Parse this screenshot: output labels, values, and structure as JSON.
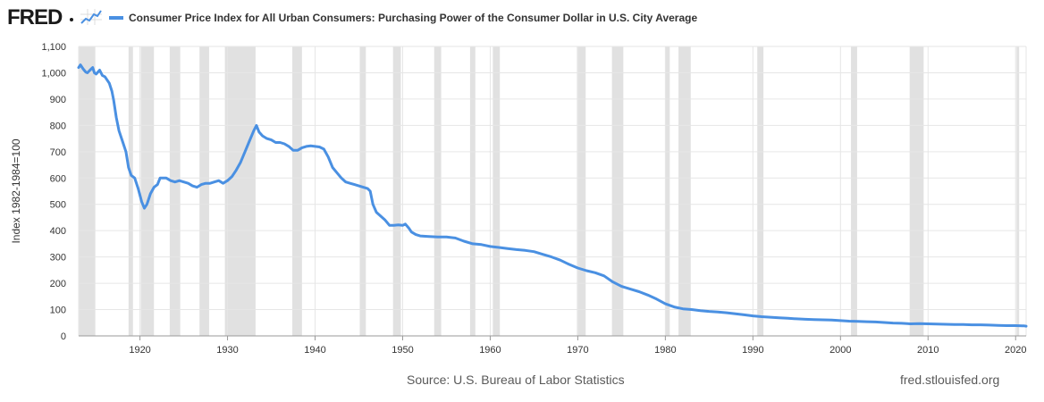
{
  "brand": {
    "logo_text": "FRED"
  },
  "footer": {
    "source": "Source: U.S. Bureau of Labor Statistics",
    "url": "fred.stlouisfed.org"
  },
  "chart_data": {
    "type": "line",
    "title": "Consumer Price Index for All Urban Consumers: Purchasing Power of the Consumer Dollar in U.S. City Average",
    "xlabel": "",
    "ylabel": "Index 1982-1984=100",
    "xlim": [
      1913.0,
      2021.2
    ],
    "ylim": [
      0,
      1100
    ],
    "x_ticks": [
      1920,
      1930,
      1940,
      1950,
      1960,
      1970,
      1980,
      1990,
      2000,
      2010,
      2020
    ],
    "y_ticks": [
      0,
      100,
      200,
      300,
      400,
      500,
      600,
      700,
      800,
      900,
      1000,
      1100
    ],
    "y_tick_labels": [
      "0",
      "100",
      "200",
      "300",
      "400",
      "500",
      "600",
      "700",
      "800",
      "900",
      "1,000",
      "1,100"
    ],
    "grid": "vertical and horizontal",
    "line_color": "#4a90e2",
    "recession_color": "#e1e1e1",
    "recessions": [
      [
        1913.0,
        1914.9
      ],
      [
        1918.7,
        1919.2
      ],
      [
        1920.1,
        1921.6
      ],
      [
        1923.4,
        1924.6
      ],
      [
        1926.8,
        1927.9
      ],
      [
        1929.7,
        1933.2
      ],
      [
        1937.4,
        1938.5
      ],
      [
        1945.1,
        1945.8
      ],
      [
        1948.9,
        1949.8
      ],
      [
        1953.6,
        1954.4
      ],
      [
        1957.7,
        1958.3
      ],
      [
        1960.3,
        1961.1
      ],
      [
        1969.9,
        1970.9
      ],
      [
        1973.9,
        1975.2
      ],
      [
        1980.0,
        1980.5
      ],
      [
        1981.5,
        1982.9
      ],
      [
        1990.5,
        1991.2
      ],
      [
        2001.2,
        2001.9
      ],
      [
        2007.9,
        2009.5
      ],
      [
        2020.1,
        2020.4
      ]
    ],
    "series": [
      {
        "points": [
          [
            1913.0,
            1020
          ],
          [
            1913.2,
            1030
          ],
          [
            1913.5,
            1015
          ],
          [
            1913.8,
            1003
          ],
          [
            1914.0,
            1000
          ],
          [
            1914.3,
            1010
          ],
          [
            1914.6,
            1020
          ],
          [
            1914.8,
            1000
          ],
          [
            1915.0,
            995
          ],
          [
            1915.4,
            1010
          ],
          [
            1915.7,
            990
          ],
          [
            1916.0,
            985
          ],
          [
            1916.5,
            960
          ],
          [
            1916.8,
            930
          ],
          [
            1917.0,
            895
          ],
          [
            1917.3,
            830
          ],
          [
            1917.6,
            780
          ],
          [
            1918.0,
            740
          ],
          [
            1918.4,
            700
          ],
          [
            1918.7,
            640
          ],
          [
            1919.0,
            610
          ],
          [
            1919.4,
            600
          ],
          [
            1919.8,
            560
          ],
          [
            1920.2,
            510
          ],
          [
            1920.5,
            485
          ],
          [
            1920.8,
            500
          ],
          [
            1921.2,
            540
          ],
          [
            1921.6,
            565
          ],
          [
            1922.0,
            575
          ],
          [
            1922.3,
            600
          ],
          [
            1922.7,
            600
          ],
          [
            1923.0,
            600
          ],
          [
            1923.5,
            590
          ],
          [
            1924.0,
            585
          ],
          [
            1924.5,
            590
          ],
          [
            1925.0,
            585
          ],
          [
            1925.5,
            580
          ],
          [
            1926.0,
            570
          ],
          [
            1926.5,
            565
          ],
          [
            1927.0,
            575
          ],
          [
            1927.5,
            580
          ],
          [
            1928.0,
            580
          ],
          [
            1928.5,
            585
          ],
          [
            1929.0,
            590
          ],
          [
            1929.5,
            580
          ],
          [
            1930.0,
            590
          ],
          [
            1930.5,
            605
          ],
          [
            1931.0,
            630
          ],
          [
            1931.5,
            660
          ],
          [
            1932.0,
            700
          ],
          [
            1932.5,
            740
          ],
          [
            1933.0,
            780
          ],
          [
            1933.3,
            800
          ],
          [
            1933.6,
            775
          ],
          [
            1934.0,
            760
          ],
          [
            1934.5,
            750
          ],
          [
            1935.0,
            745
          ],
          [
            1935.5,
            735
          ],
          [
            1936.0,
            735
          ],
          [
            1936.5,
            730
          ],
          [
            1937.0,
            720
          ],
          [
            1937.5,
            705
          ],
          [
            1938.0,
            705
          ],
          [
            1938.5,
            715
          ],
          [
            1939.0,
            720
          ],
          [
            1939.5,
            722
          ],
          [
            1940.0,
            720
          ],
          [
            1940.5,
            718
          ],
          [
            1941.0,
            710
          ],
          [
            1941.5,
            680
          ],
          [
            1942.0,
            640
          ],
          [
            1942.5,
            620
          ],
          [
            1943.0,
            600
          ],
          [
            1943.5,
            585
          ],
          [
            1944.0,
            580
          ],
          [
            1944.5,
            575
          ],
          [
            1945.0,
            570
          ],
          [
            1945.5,
            565
          ],
          [
            1946.0,
            560
          ],
          [
            1946.3,
            550
          ],
          [
            1946.6,
            500
          ],
          [
            1947.0,
            470
          ],
          [
            1947.5,
            455
          ],
          [
            1948.0,
            440
          ],
          [
            1948.5,
            420
          ],
          [
            1949.0,
            420
          ],
          [
            1949.5,
            422
          ],
          [
            1950.0,
            420
          ],
          [
            1950.3,
            425
          ],
          [
            1950.7,
            410
          ],
          [
            1951.0,
            395
          ],
          [
            1951.5,
            385
          ],
          [
            1952.0,
            380
          ],
          [
            1953.0,
            378
          ],
          [
            1954.0,
            376
          ],
          [
            1955.0,
            376
          ],
          [
            1956.0,
            372
          ],
          [
            1957.0,
            360
          ],
          [
            1958.0,
            350
          ],
          [
            1959.0,
            347
          ],
          [
            1960.0,
            340
          ],
          [
            1961.0,
            336
          ],
          [
            1962.0,
            332
          ],
          [
            1963.0,
            328
          ],
          [
            1964.0,
            325
          ],
          [
            1965.0,
            320
          ],
          [
            1966.0,
            310
          ],
          [
            1967.0,
            300
          ],
          [
            1968.0,
            288
          ],
          [
            1969.0,
            272
          ],
          [
            1970.0,
            258
          ],
          [
            1971.0,
            248
          ],
          [
            1972.0,
            240
          ],
          [
            1973.0,
            228
          ],
          [
            1974.0,
            205
          ],
          [
            1975.0,
            188
          ],
          [
            1976.0,
            178
          ],
          [
            1977.0,
            168
          ],
          [
            1978.0,
            155
          ],
          [
            1979.0,
            140
          ],
          [
            1980.0,
            122
          ],
          [
            1981.0,
            110
          ],
          [
            1982.0,
            103
          ],
          [
            1983.0,
            100
          ],
          [
            1984.0,
            96
          ],
          [
            1985.0,
            93
          ],
          [
            1986.0,
            91
          ],
          [
            1987.0,
            88
          ],
          [
            1988.0,
            84
          ],
          [
            1989.0,
            80
          ],
          [
            1990.0,
            76
          ],
          [
            1991.0,
            73
          ],
          [
            1992.0,
            71
          ],
          [
            1993.0,
            69
          ],
          [
            1994.0,
            67
          ],
          [
            1995.0,
            65
          ],
          [
            1996.0,
            63
          ],
          [
            1997.0,
            62
          ],
          [
            1998.0,
            61
          ],
          [
            1999.0,
            60
          ],
          [
            2000.0,
            58
          ],
          [
            2001.0,
            56
          ],
          [
            2002.0,
            55
          ],
          [
            2003.0,
            54
          ],
          [
            2004.0,
            53
          ],
          [
            2005.0,
            51
          ],
          [
            2006.0,
            49
          ],
          [
            2007.0,
            48
          ],
          [
            2008.0,
            46
          ],
          [
            2009.0,
            47
          ],
          [
            2010.0,
            46
          ],
          [
            2011.0,
            45
          ],
          [
            2012.0,
            44
          ],
          [
            2013.0,
            43
          ],
          [
            2014.0,
            43
          ],
          [
            2015.0,
            42
          ],
          [
            2016.0,
            42
          ],
          [
            2017.0,
            41
          ],
          [
            2018.0,
            40
          ],
          [
            2019.0,
            39
          ],
          [
            2020.0,
            39
          ],
          [
            2021.0,
            38
          ],
          [
            2021.2,
            37
          ]
        ]
      }
    ]
  }
}
